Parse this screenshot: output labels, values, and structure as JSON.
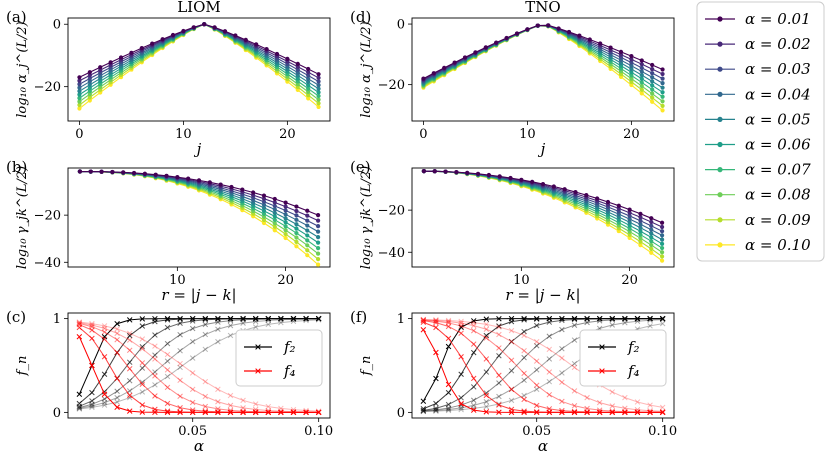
{
  "legend": {
    "alpha_label": "α",
    "entries": [
      "α = 0.01",
      "α = 0.02",
      "α = 0.03",
      "α = 0.04",
      "α = 0.05",
      "α = 0.06",
      "α = 0.07",
      "α = 0.08",
      "α = 0.09",
      "α = 0.10"
    ],
    "colors": [
      "#440154",
      "#482878",
      "#3e4989",
      "#31688e",
      "#26828e",
      "#1f9e89",
      "#35b779",
      "#6ece58",
      "#b5de2b",
      "#fde725"
    ]
  },
  "panels": {
    "a": {
      "label": "(a)",
      "title": "LIOM",
      "xlabel": "j",
      "ylabel": "log₁₀ α_j^(L/2)"
    },
    "d": {
      "label": "(d)",
      "title": "TNO",
      "xlabel": "j",
      "ylabel": "log₁₀ α_j^(L/2)"
    },
    "b": {
      "label": "(b)",
      "xlabel": "r = |j − k|",
      "ylabel": "log₁₀ γ_jk^(L/2)"
    },
    "e": {
      "label": "(e)",
      "xlabel": "r = |j − k|",
      "ylabel": "log₁₀ γ_jk^(L/2)"
    },
    "c": {
      "label": "(c)",
      "xlabel": "α",
      "ylabel": "f_n",
      "legend": [
        "f₂",
        "f₄"
      ]
    },
    "f": {
      "label": "(f)",
      "xlabel": "α",
      "ylabel": "f_n",
      "legend": [
        "f₂",
        "f₄"
      ]
    }
  },
  "chart_data": [
    {
      "id": "a",
      "type": "line",
      "title": "LIOM",
      "xlabel": "j",
      "ylabel": "log10 alpha_j^(L/2)",
      "x_range": [
        0,
        23
      ],
      "xlim": [
        -1.1,
        24.1
      ],
      "ylim": [
        -31,
        2
      ],
      "xticks": [
        0,
        10,
        20
      ],
      "xtick_labels": [
        "0",
        "10",
        "20"
      ],
      "yticks": [
        0,
        -20
      ],
      "ytick_labels": [
        "0",
        "−20"
      ],
      "center": 12,
      "peak": 0,
      "left_end": [
        -17,
        -27
      ],
      "right_end": [
        -16,
        -26.5
      ],
      "series_names": [
        "α = 0.01",
        "α = 0.02",
        "α = 0.03",
        "α = 0.04",
        "α = 0.05",
        "α = 0.06",
        "α = 0.07",
        "α = 0.08",
        "α = 0.09",
        "α = 0.10"
      ]
    },
    {
      "id": "d",
      "type": "line",
      "title": "TNO",
      "xlabel": "j",
      "ylabel": "log10 alpha_j^(L/2)",
      "x_range": [
        0,
        23
      ],
      "xlim": [
        -1.1,
        24.1
      ],
      "ylim": [
        -32,
        2
      ],
      "xticks": [
        0,
        10,
        20
      ],
      "xtick_labels": [
        "0",
        "10",
        "20"
      ],
      "yticks": [
        0,
        -20
      ],
      "ytick_labels": [
        "0",
        "−20"
      ],
      "center": 11.5,
      "peak": 0,
      "left_end": [
        -18,
        -21
      ],
      "right_end": [
        -15,
        -28.5
      ],
      "series_names": [
        "α = 0.01",
        "α = 0.02",
        "α = 0.03",
        "α = 0.04",
        "α = 0.05",
        "α = 0.06",
        "α = 0.07",
        "α = 0.08",
        "α = 0.09",
        "α = 0.10"
      ]
    },
    {
      "id": "b",
      "type": "line",
      "xlabel": "r = |j − k|",
      "ylabel": "log10 gamma_jk^(L/2)",
      "x_range": [
        1,
        23
      ],
      "xlim": [
        -0.1,
        24.1
      ],
      "ylim": [
        -42,
        0
      ],
      "xticks": [
        10,
        20
      ],
      "xtick_labels": [
        "10",
        "20"
      ],
      "yticks": [
        -20,
        -40
      ],
      "ytick_labels": [
        "−20",
        "−40"
      ],
      "start": -1.5,
      "end": [
        -20,
        -41
      ],
      "exponent": 2.3,
      "series_names": [
        "α = 0.01",
        "α = 0.02",
        "α = 0.03",
        "α = 0.04",
        "α = 0.05",
        "α = 0.06",
        "α = 0.07",
        "α = 0.08",
        "α = 0.09",
        "α = 0.10"
      ]
    },
    {
      "id": "e",
      "type": "line",
      "xlabel": "r = |j − k|",
      "ylabel": "log10 gamma_jk^(L/2)",
      "x_range": [
        1,
        23
      ],
      "xlim": [
        -0.1,
        24.1
      ],
      "ylim": [
        -47,
        0
      ],
      "xticks": [
        10,
        20
      ],
      "xtick_labels": [
        "10",
        "20"
      ],
      "yticks": [
        -20,
        -40
      ],
      "ytick_labels": [
        "−20",
        "−40"
      ],
      "start": -1.5,
      "end": [
        -26,
        -44
      ],
      "exponent": 2.0,
      "series_names": [
        "α = 0.01",
        "α = 0.02",
        "α = 0.03",
        "α = 0.04",
        "α = 0.05",
        "α = 0.06",
        "α = 0.07",
        "α = 0.08",
        "α = 0.09",
        "α = 0.10"
      ]
    },
    {
      "id": "c",
      "type": "line",
      "xlabel": "α",
      "ylabel": "f_n",
      "x_range": [
        0.005,
        0.1
      ],
      "xlim": [
        0.0005,
        0.1045
      ],
      "ylim": [
        -0.06,
        1.06
      ],
      "xticks": [
        0.05,
        0.1
      ],
      "xtick_labels": [
        "0.05",
        "0.10"
      ],
      "yticks": [
        0,
        1
      ],
      "ytick_labels": [
        "0",
        "1"
      ],
      "series": [
        {
          "name": "f₂",
          "color": "#000000",
          "midpoints": [
            0.01,
            0.017,
            0.024,
            0.031,
            0.038,
            0.046
          ]
        },
        {
          "name": "f₄",
          "color": "#ff0000",
          "midpoints": [
            0.01,
            0.017,
            0.024,
            0.031,
            0.038,
            0.046
          ]
        }
      ]
    },
    {
      "id": "f",
      "type": "line",
      "xlabel": "α",
      "ylabel": "f_n",
      "x_range": [
        0.005,
        0.1
      ],
      "xlim": [
        0.0005,
        0.1045
      ],
      "ylim": [
        -0.06,
        1.06
      ],
      "xticks": [
        0.05,
        0.1
      ],
      "xtick_labels": [
        "0.05",
        "0.10"
      ],
      "yticks": [
        0,
        1
      ],
      "ytick_labels": [
        "0",
        "1"
      ],
      "series": [
        {
          "name": "f₂",
          "color": "#000000",
          "midpoints": [
            0.012,
            0.022,
            0.032,
            0.042,
            0.052,
            0.064
          ]
        },
        {
          "name": "f₄",
          "color": "#ff0000",
          "midpoints": [
            0.012,
            0.022,
            0.032,
            0.042,
            0.052,
            0.064
          ]
        }
      ]
    }
  ]
}
